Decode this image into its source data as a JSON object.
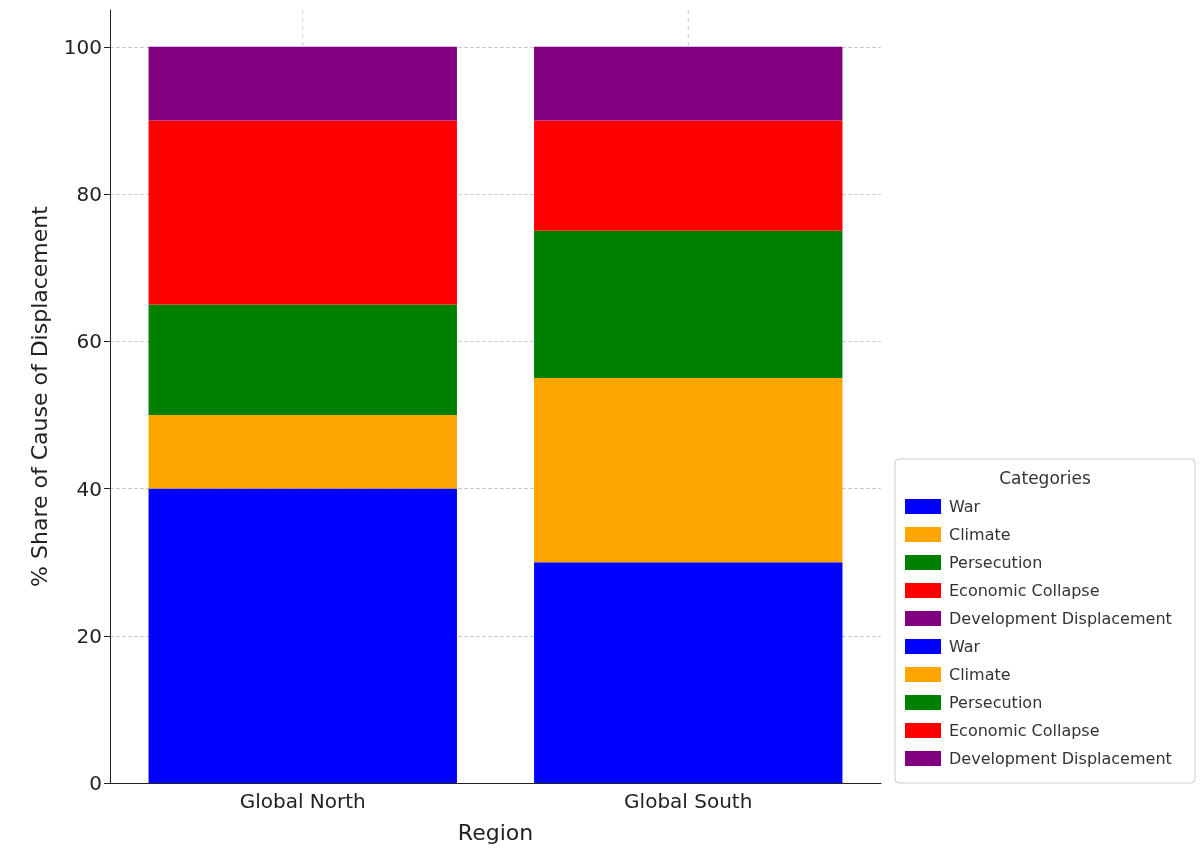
{
  "chart_data": {
    "type": "bar",
    "xlabel": "Region",
    "ylabel": "% Share of Cause of Displacement",
    "legend_title": "Categories",
    "categories": [
      "Global North",
      "Global South"
    ],
    "series": [
      {
        "name": "War",
        "color": "#0000ff",
        "values": [
          40,
          null
        ]
      },
      {
        "name": "Climate",
        "color": "#ffa500",
        "values": [
          10,
          null
        ]
      },
      {
        "name": "Persecution",
        "color": "#008000",
        "values": [
          15,
          null
        ]
      },
      {
        "name": "Economic Collapse",
        "color": "#ff0000",
        "values": [
          25,
          null
        ]
      },
      {
        "name": "Development Displacement",
        "color": "#800080",
        "values": [
          10,
          null
        ]
      },
      {
        "name": "War",
        "color": "#0000ff",
        "values": [
          null,
          30
        ]
      },
      {
        "name": "Climate",
        "color": "#ffa500",
        "values": [
          null,
          25
        ]
      },
      {
        "name": "Persecution",
        "color": "#008000",
        "values": [
          null,
          20
        ]
      },
      {
        "name": "Economic Collapse",
        "color": "#ff0000",
        "values": [
          null,
          15
        ]
      },
      {
        "name": "Development Displacement",
        "color": "#800080",
        "values": [
          null,
          10
        ]
      }
    ],
    "stacked": true,
    "ylim": [
      0,
      105
    ],
    "yticks": [
      0,
      20,
      40,
      60,
      80,
      100
    ],
    "grid": true,
    "legend": "bottom right"
  }
}
